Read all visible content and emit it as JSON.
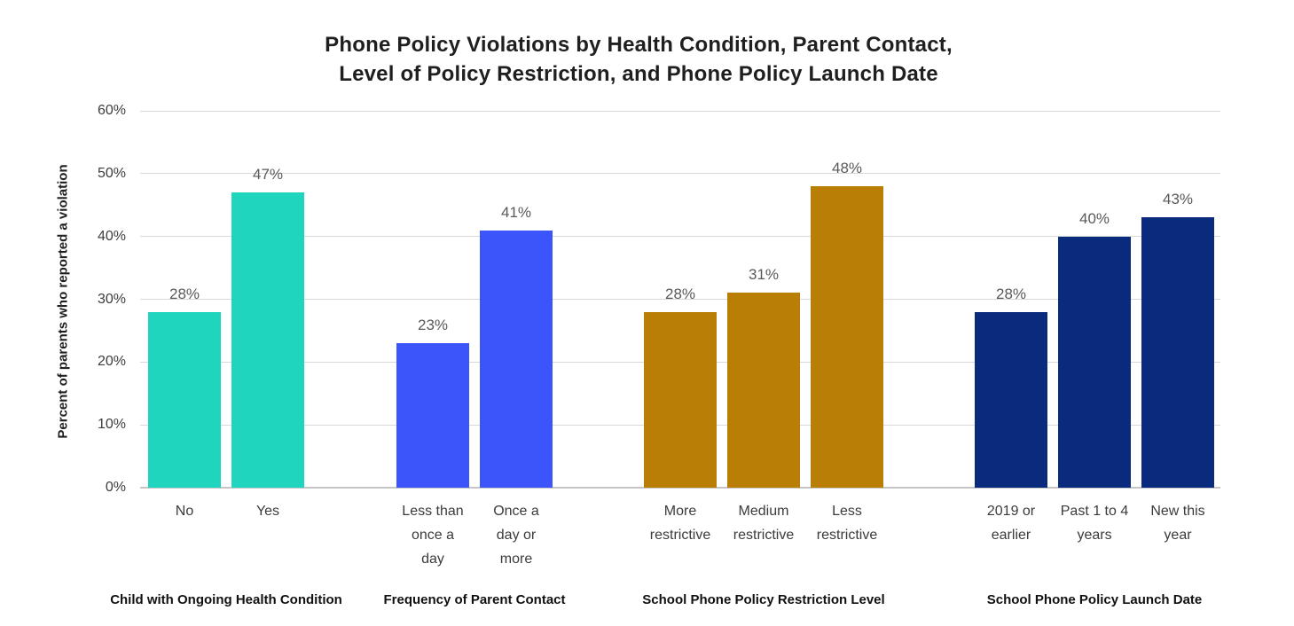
{
  "header": {
    "title_line1": "Phone Policy Violations by Health Condition, Parent Contact,",
    "title_line2": "Level of Policy Restriction, and Phone Policy Launch Date"
  },
  "chart_data": {
    "type": "bar",
    "title": "Phone Policy Violations by Health Condition, Parent Contact, Level of Policy Restriction, and Phone Policy Launch Date",
    "xlabel": "",
    "ylabel": "Percent of parents who reported a violation",
    "ylim": [
      0,
      60
    ],
    "y_ticks": [
      "0%",
      "10%",
      "20%",
      "30%",
      "40%",
      "50%",
      "60%"
    ],
    "grid": true,
    "legend": false,
    "colors": {
      "gridline": "#d9d9d9",
      "value_label": "#595959",
      "teal": "#1fd5bd",
      "blue": "#3b55fa",
      "ochre": "#b87e06",
      "navy": "#0a2a7e"
    },
    "groups": [
      {
        "name": "Child with Ongoing Health Condition",
        "color": "#1fd5bd",
        "bars": [
          {
            "category": "No",
            "category_lines": [
              "No"
            ],
            "value": 28,
            "label": "28%"
          },
          {
            "category": "Yes",
            "category_lines": [
              "Yes"
            ],
            "value": 47,
            "label": "47%"
          }
        ]
      },
      {
        "name": "Frequency of Parent Contact",
        "color": "#3b55fa",
        "bars": [
          {
            "category": "Less than once a day",
            "category_lines": [
              "Less than",
              "once a",
              "day"
            ],
            "value": 23,
            "label": "23%"
          },
          {
            "category": "Once a day or more",
            "category_lines": [
              "Once a",
              "day or",
              "more"
            ],
            "value": 41,
            "label": "41%"
          }
        ]
      },
      {
        "name": "School Phone Policy Restriction Level",
        "color": "#b87e06",
        "bars": [
          {
            "category": "More restrictive",
            "category_lines": [
              "More",
              "restrictive"
            ],
            "value": 28,
            "label": "28%"
          },
          {
            "category": "Medium restrictive",
            "category_lines": [
              "Medium",
              "restrictive"
            ],
            "value": 31,
            "label": "31%"
          },
          {
            "category": "Less restrictive",
            "category_lines": [
              "Less",
              "restrictive"
            ],
            "value": 48,
            "label": "48%"
          }
        ]
      },
      {
        "name": "School Phone Policy Launch Date",
        "color": "#0a2a7e",
        "bars": [
          {
            "category": "2019 or earlier",
            "category_lines": [
              "2019 or",
              "earlier"
            ],
            "value": 28,
            "label": "28%"
          },
          {
            "category": "Past 1 to 4 years",
            "category_lines": [
              "Past 1 to 4",
              "years"
            ],
            "value": 40,
            "label": "40%"
          },
          {
            "category": "New this year",
            "category_lines": [
              "New this",
              "year"
            ],
            "value": 43,
            "label": "43%"
          }
        ]
      }
    ]
  }
}
